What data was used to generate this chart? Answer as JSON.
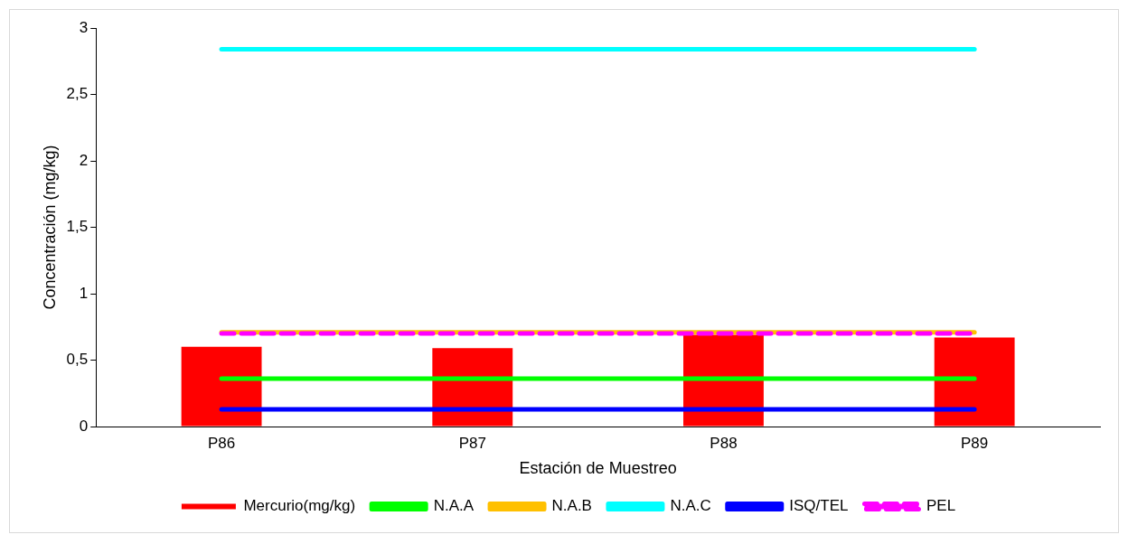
{
  "chart_data": {
    "type": "bar",
    "xlabel": "Estación de Muestreo",
    "ylabel": "Concentración (mg/kg)",
    "categories": [
      "P86",
      "P87",
      "P88",
      "P89"
    ],
    "series": [
      {
        "name": "Mercurio(mg/kg)",
        "color": "#ff0000",
        "values": [
          0.6,
          0.59,
          0.69,
          0.67
        ]
      },
      {
        "name": "N.A.A",
        "type": "line",
        "color": "#00ff00",
        "values": [
          0.36,
          0.36,
          0.36,
          0.36
        ]
      },
      {
        "name": "N.A.B",
        "type": "line",
        "color": "#ffc000",
        "values": [
          0.71,
          0.71,
          0.71,
          0.71
        ]
      },
      {
        "name": "N.A.C",
        "type": "line",
        "color": "#00ffff",
        "values": [
          2.84,
          2.84,
          2.84,
          2.84
        ]
      },
      {
        "name": "ISQ/TEL",
        "type": "line",
        "color": "#0000ff",
        "values": [
          0.13,
          0.13,
          0.13,
          0.13
        ]
      },
      {
        "name": "PEL",
        "type": "line",
        "color": "#ff00ff",
        "line_style": "dashed",
        "values": [
          0.7,
          0.7,
          0.7,
          0.7
        ]
      }
    ],
    "ylim": [
      0,
      3
    ],
    "yticks": [
      0,
      {
        "value": 0.5,
        "label": "0,5"
      },
      1,
      {
        "value": 1.5,
        "label": "1,5"
      },
      2,
      {
        "value": 2.5,
        "label": "2,5"
      },
      3
    ],
    "grid": false,
    "legend": "bottom",
    "marker": "none"
  }
}
